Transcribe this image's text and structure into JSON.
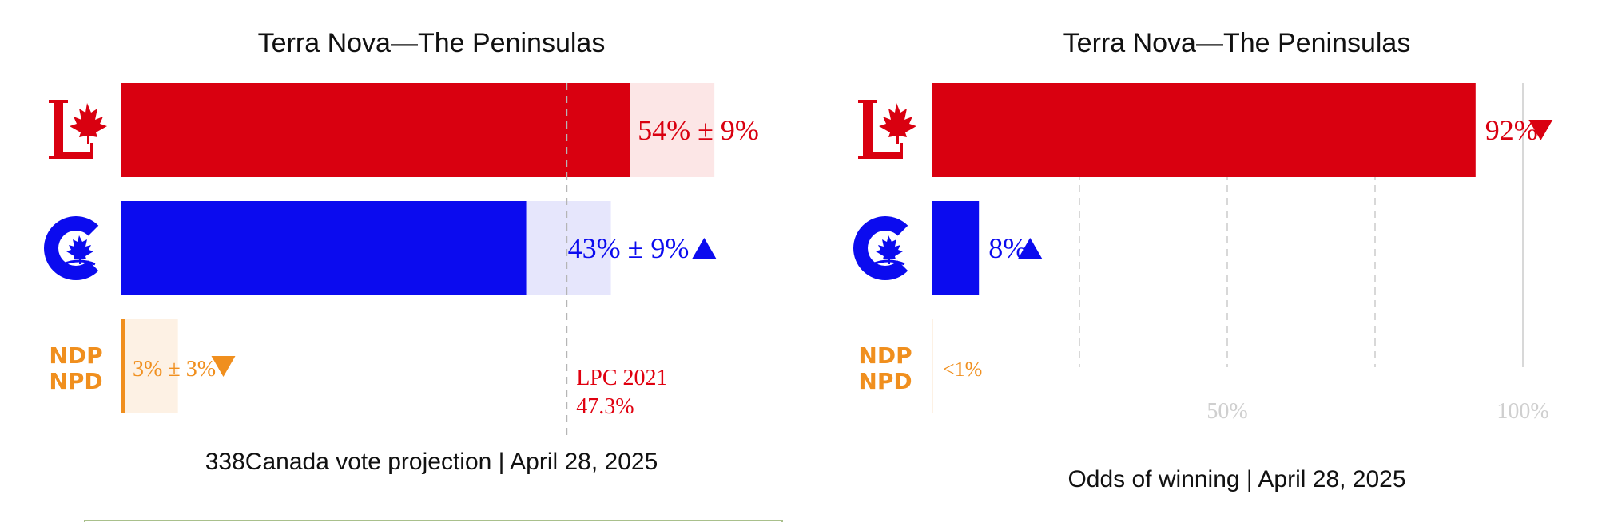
{
  "colors": {
    "lpc": "#d90010",
    "cpc": "#0b0bef",
    "ndp": "#f08f1e",
    "grid": "#d8d8d8",
    "tick": "#cfcfcf",
    "panel_border": "#a9c08c"
  },
  "icons": [
    "liberal-logo-icon",
    "conservative-logo-icon",
    "ndp-npd-logo-icon",
    "triangle-up-icon",
    "triangle-down-icon"
  ],
  "ndp_logo": {
    "line1": "NDP",
    "line2": "NPD"
  },
  "chart_data": [
    {
      "type": "bar",
      "orientation": "horizontal",
      "title": "Terra Nova—The Peninsulas",
      "caption": "338Canada vote projection | April 28, 2025",
      "xlim": [
        0,
        100
      ],
      "grid": false,
      "categories": [
        "LPC",
        "CPC",
        "NDP"
      ],
      "values": [
        54,
        43,
        3
      ],
      "margin_of_error": [
        9,
        9,
        3
      ],
      "labels": [
        "54% ± 9%",
        "43% ± 9%",
        "3% ± 3%"
      ],
      "trend": [
        "",
        "up",
        "down"
      ],
      "reference": {
        "value": 47.3,
        "label_line1": "LPC 2021",
        "label_line2": "47.3%"
      }
    },
    {
      "type": "bar",
      "orientation": "horizontal",
      "title": "Terra Nova—The Peninsulas",
      "caption": "Odds of winning | April 28, 2025",
      "xlim": [
        0,
        100
      ],
      "grid": true,
      "ticks": [
        25,
        50,
        75,
        100
      ],
      "tick_labels": [
        "",
        "50%",
        "",
        "100%"
      ],
      "categories": [
        "LPC",
        "CPC",
        "NDP"
      ],
      "values": [
        92,
        8,
        0.5
      ],
      "labels": [
        "92%",
        "8%",
        "<1%"
      ],
      "trend": [
        "down",
        "up",
        ""
      ]
    }
  ]
}
